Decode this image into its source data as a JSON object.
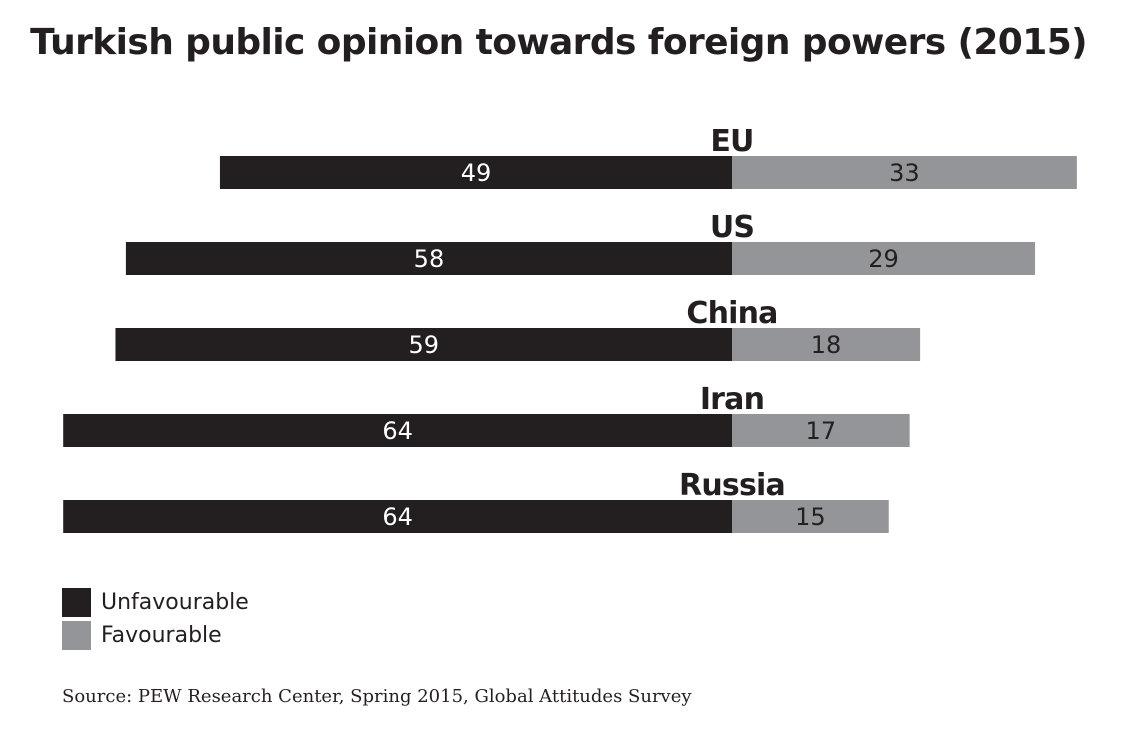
{
  "chart_data": {
    "type": "bar",
    "title": "Turkish public opinion towards foreign powers (2015)",
    "categories": [
      "EU",
      "US",
      "China",
      "Iran",
      "Russia"
    ],
    "series": [
      {
        "name": "Unfavourable",
        "values": [
          49,
          58,
          59,
          64,
          64
        ],
        "color": "#231f20"
      },
      {
        "name": "Favourable",
        "values": [
          33,
          29,
          18,
          17,
          15
        ],
        "color": "#939598"
      }
    ],
    "legend_position": "bottom-left",
    "grid": false,
    "source": "Source: PEW Research Center, Spring 2015, Global Attitudes Survey"
  }
}
